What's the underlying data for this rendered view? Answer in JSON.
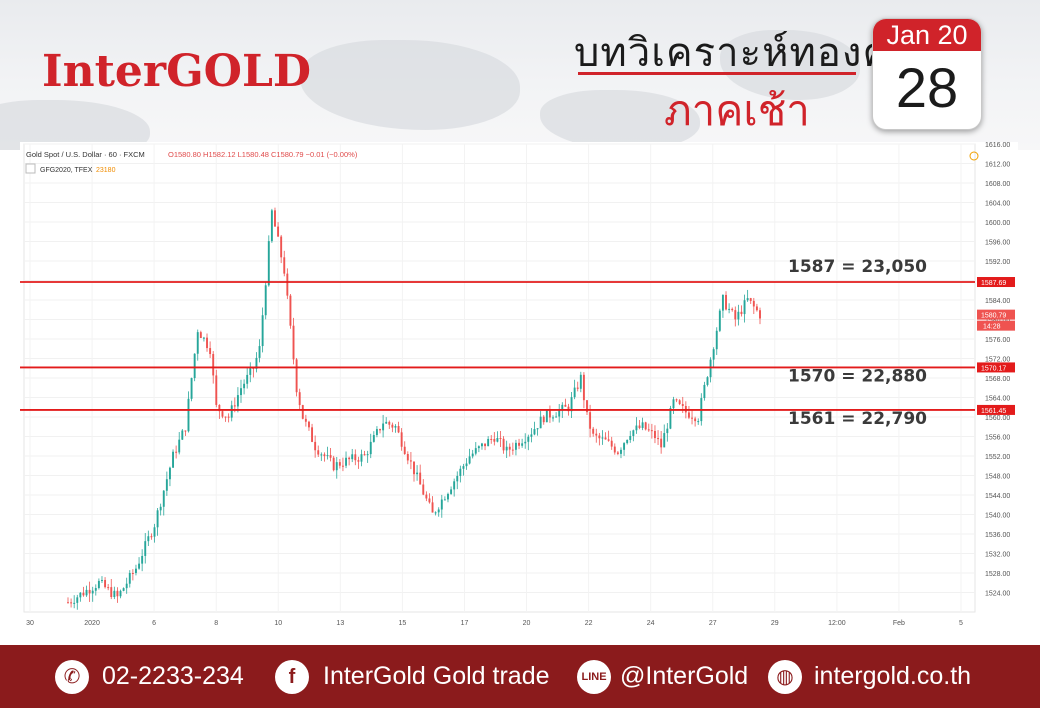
{
  "header": {
    "logo_text": "InterGOLD",
    "title": "บทวิเคราะห์ทองคำ",
    "subtitle": "ภาคเช้า",
    "calendar_month": "Jan 20",
    "calendar_day": "28"
  },
  "chart_info": {
    "symbol_line": "Gold Spot / U.S. Dollar · 60 · FXCM",
    "ohlc_line": "O1580.80 H1582.12 L1580.48 C1580.79 −0.01 (−0.00%)",
    "indicator_label": "GFG2020, TFEX",
    "indicator_value": "23180"
  },
  "chart_data": {
    "type": "candlestick",
    "title": "Gold Spot / U.S. Dollar",
    "ylim": [
      1520,
      1616
    ],
    "y_ticks": [
      "1616.00",
      "1612.00",
      "1608.00",
      "1604.00",
      "1600.00",
      "1596.00",
      "1592.00",
      "1588.00",
      "1584.00",
      "1580.00",
      "1576.00",
      "1572.00",
      "1568.00",
      "1564.00",
      "1560.00",
      "1556.00",
      "1552.00",
      "1548.00",
      "1544.00",
      "1540.00",
      "1536.00",
      "1532.00",
      "1528.00",
      "1524.00"
    ],
    "x_ticks": [
      "30",
      "2020",
      "6",
      "8",
      "10",
      "13",
      "15",
      "17",
      "20",
      "22",
      "24",
      "27",
      "29",
      "12:00",
      "Feb",
      "5"
    ],
    "price_anchors": [
      [
        0,
        1522
      ],
      [
        10,
        1526
      ],
      [
        16,
        1523
      ],
      [
        22,
        1529
      ],
      [
        28,
        1538
      ],
      [
        34,
        1552
      ],
      [
        38,
        1558
      ],
      [
        42,
        1578
      ],
      [
        46,
        1574
      ],
      [
        48,
        1562
      ],
      [
        52,
        1560
      ],
      [
        56,
        1566
      ],
      [
        60,
        1570
      ],
      [
        62,
        1574
      ],
      [
        66,
        1602
      ],
      [
        70,
        1590
      ],
      [
        72,
        1578
      ],
      [
        74,
        1566
      ],
      [
        76,
        1560
      ],
      [
        80,
        1554
      ],
      [
        86,
        1550
      ],
      [
        90,
        1551
      ],
      [
        96,
        1552
      ],
      [
        102,
        1559
      ],
      [
        106,
        1558
      ],
      [
        110,
        1552
      ],
      [
        114,
        1546
      ],
      [
        118,
        1540
      ],
      [
        122,
        1544
      ],
      [
        126,
        1548
      ],
      [
        130,
        1552
      ],
      [
        134,
        1554
      ],
      [
        138,
        1556
      ],
      [
        142,
        1553
      ],
      [
        146,
        1555
      ],
      [
        150,
        1557
      ],
      [
        154,
        1560
      ],
      [
        158,
        1561
      ],
      [
        162,
        1562
      ],
      [
        166,
        1568
      ],
      [
        168,
        1560
      ],
      [
        170,
        1556
      ],
      [
        174,
        1555
      ],
      [
        178,
        1553
      ],
      [
        182,
        1557
      ],
      [
        186,
        1558
      ],
      [
        190,
        1556
      ],
      [
        192,
        1554
      ],
      [
        196,
        1563
      ],
      [
        200,
        1561
      ],
      [
        204,
        1560
      ],
      [
        208,
        1572
      ],
      [
        212,
        1584
      ],
      [
        216,
        1580
      ],
      [
        220,
        1584
      ],
      [
        224,
        1581
      ]
    ],
    "last_price": "1580.79",
    "last_time": "14:28",
    "levels": [
      {
        "price": 1587.69,
        "axis_label": "1587.69",
        "annotation": "1587 = 23,050"
      },
      {
        "price": 1570.17,
        "axis_label": "1570.17",
        "annotation": "1570 = 22,880"
      },
      {
        "price": 1561.45,
        "axis_label": "1561.45",
        "annotation": "1561 = 22,790"
      }
    ],
    "colors": {
      "up": "#26a69a",
      "down": "#ef5350",
      "level": "#e31b1b"
    }
  },
  "footer": {
    "phone": "02-2233-234",
    "facebook": "InterGold Gold trade",
    "line": "@InterGold",
    "website": "intergold.co.th",
    "icons": [
      "phone-icon",
      "facebook-icon",
      "line-icon",
      "globe-icon"
    ]
  }
}
